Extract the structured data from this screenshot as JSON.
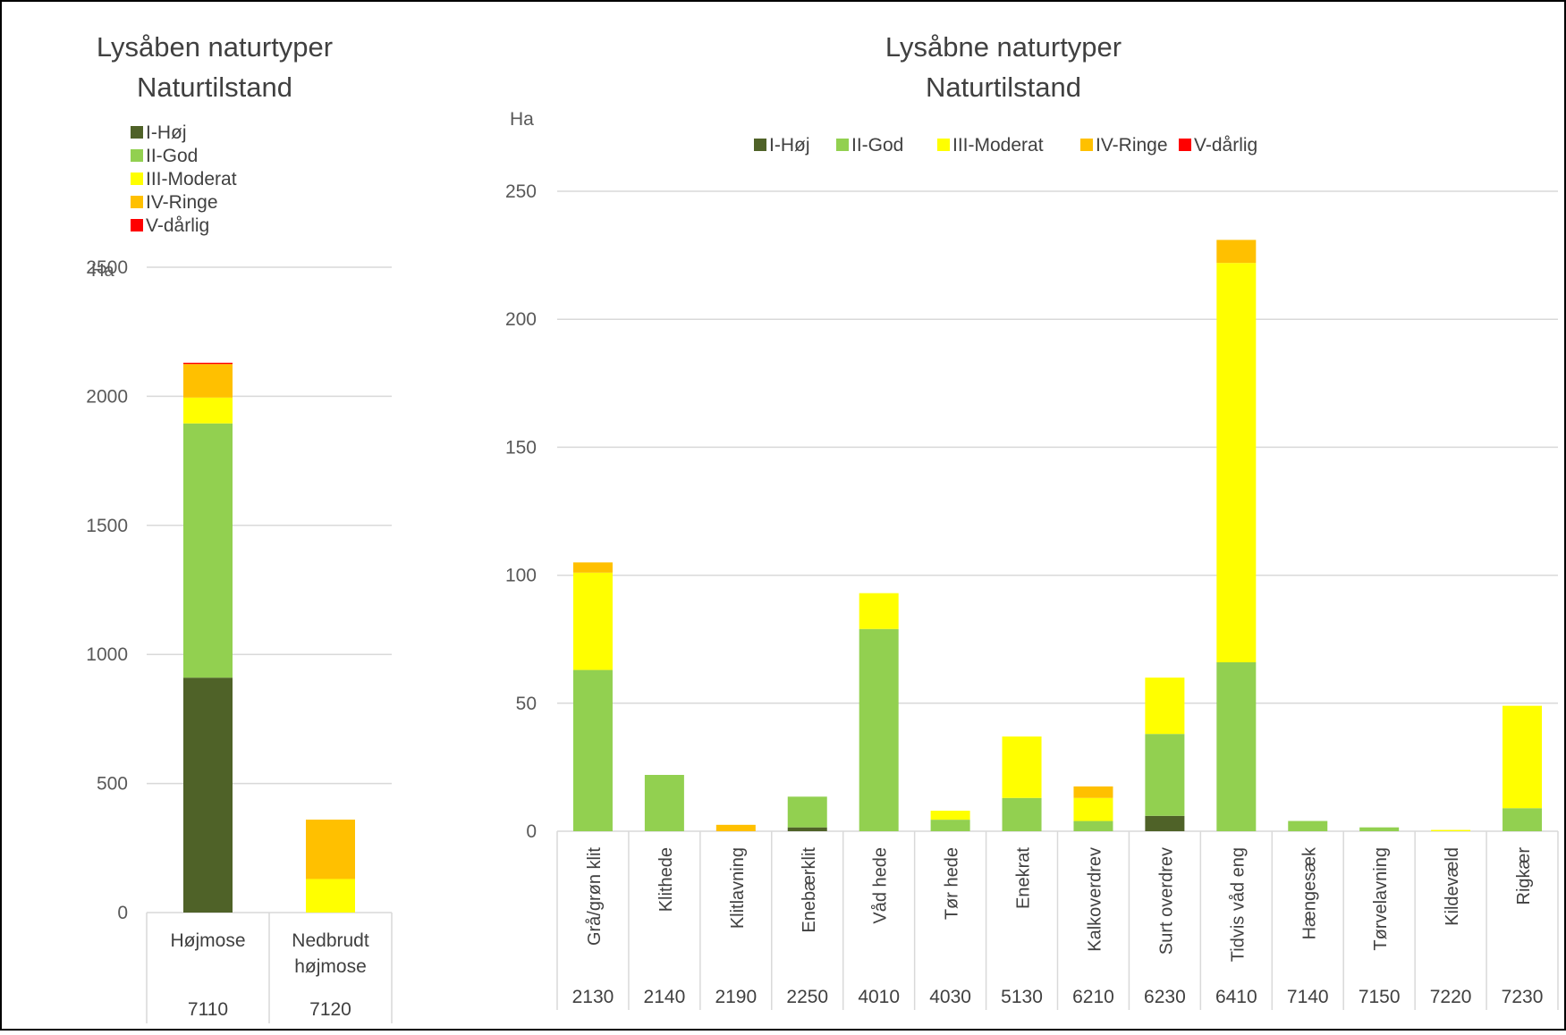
{
  "colors": {
    "I-Høj": "#4f6228",
    "II-God": "#92d050",
    "III-Moderat": "#ffff00",
    "IV-Ringe": "#ffc000",
    "V-dårlig": "#ff0000",
    "gridline": "#d9d9d9",
    "text": "#404040"
  },
  "chart_data": [
    {
      "type": "bar",
      "stacked": true,
      "title": "Lysåben naturtyper",
      "subtitle": "Naturtilstand",
      "ylabel": "Ha",
      "ylim": [
        0,
        2500
      ],
      "yticks": [
        0,
        500,
        1000,
        1500,
        2000,
        2500
      ],
      "grid": true,
      "legend_position": "top-left",
      "categories": [
        "Højmose",
        "Nedbrudt højmose"
      ],
      "category_codes": [
        "7110",
        "7120"
      ],
      "series": [
        {
          "name": "I-Høj",
          "values": [
            910,
            0
          ]
        },
        {
          "name": "II-God",
          "values": [
            985,
            0
          ]
        },
        {
          "name": "III-Moderat",
          "values": [
            100,
            130
          ]
        },
        {
          "name": "IV-Ringe",
          "values": [
            130,
            230
          ]
        },
        {
          "name": "V-dårlig",
          "values": [
            5,
            0
          ]
        }
      ]
    },
    {
      "type": "bar",
      "stacked": true,
      "title": "Lysåbne naturtyper",
      "subtitle": "Naturtilstand",
      "ylabel": "Ha",
      "ylim": [
        0,
        250
      ],
      "yticks": [
        0,
        50,
        100,
        150,
        200,
        250
      ],
      "grid": true,
      "legend_position": "top",
      "categories": [
        "Grå/grøn klit",
        "Klithede",
        "Klitlavning",
        "Enebærklit",
        "Våd hede",
        "Tør hede",
        "Enekrat",
        "Kalkoverdrev",
        "Surt overdrev",
        "Tidvis våd eng",
        "Hængesæk",
        "Tørvelavning",
        "Kildevæld",
        "Rigkær"
      ],
      "category_codes": [
        "2130",
        "2140",
        "2190",
        "2250",
        "4010",
        "4030",
        "5130",
        "6210",
        "6230",
        "6410",
        "7140",
        "7150",
        "7220",
        "7230"
      ],
      "series": [
        {
          "name": "I-Høj",
          "values": [
            0,
            0,
            0,
            1.5,
            0,
            0,
            0,
            0,
            6,
            0,
            0,
            0,
            0,
            0
          ]
        },
        {
          "name": "II-God",
          "values": [
            63,
            22,
            0,
            12,
            79,
            4.5,
            13,
            4,
            32,
            66,
            4,
            1.5,
            0,
            9
          ]
        },
        {
          "name": "III-Moderat",
          "values": [
            38,
            0,
            0,
            0,
            14,
            3.5,
            24,
            9,
            22,
            156,
            0,
            0,
            0.5,
            40
          ]
        },
        {
          "name": "IV-Ringe",
          "values": [
            4,
            0,
            2.5,
            0,
            0,
            0,
            0,
            4.5,
            0,
            9,
            0,
            0,
            0,
            0
          ]
        },
        {
          "name": "V-dårlig",
          "values": [
            0,
            0,
            0,
            0,
            0,
            0,
            0,
            0,
            0,
            0,
            0,
            0,
            0,
            0
          ]
        }
      ]
    }
  ]
}
